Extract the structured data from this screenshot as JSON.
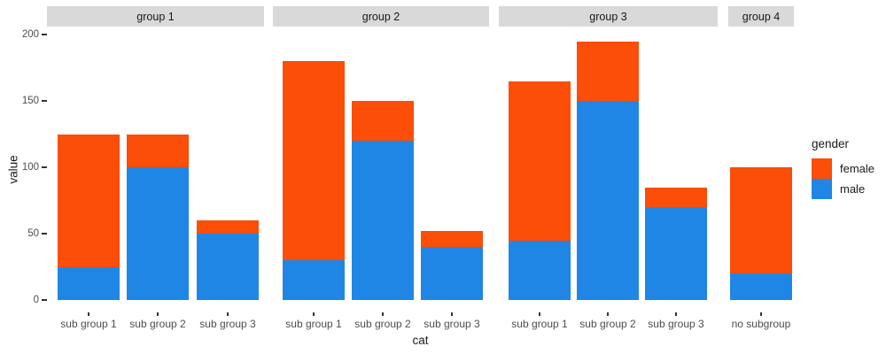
{
  "chart_data": {
    "type": "bar",
    "stacked": true,
    "title": "",
    "xlabel": "cat",
    "ylabel": "value",
    "ylim": [
      0,
      200
    ],
    "yticks": [
      0,
      50,
      100,
      150,
      200
    ],
    "grid": false,
    "legend": {
      "title": "gender",
      "position": "right",
      "entries": [
        {
          "label": "female",
          "color": "#FA4E09"
        },
        {
          "label": "male",
          "color": "#2086E6"
        }
      ]
    },
    "colors": {
      "female": "#FA4E09",
      "male": "#2086E6"
    },
    "strip_bg": "#D9D9D9",
    "axis_text_color": "#4d4d4d",
    "facets": [
      {
        "label": "group 1",
        "categories": [
          "sub group 1",
          "sub group 2",
          "sub group 3"
        ],
        "series": [
          {
            "name": "male",
            "values": [
              25,
              100,
              50
            ]
          },
          {
            "name": "female",
            "values": [
              100,
              25,
              10
            ]
          }
        ]
      },
      {
        "label": "group 2",
        "categories": [
          "sub group 1",
          "sub group 2",
          "sub group 3"
        ],
        "series": [
          {
            "name": "male",
            "values": [
              30,
              120,
              40
            ]
          },
          {
            "name": "female",
            "values": [
              150,
              30,
              12
            ]
          }
        ]
      },
      {
        "label": "group 3",
        "categories": [
          "sub group 1",
          "sub group 2",
          "sub group 3"
        ],
        "series": [
          {
            "name": "male",
            "values": [
              45,
              150,
              70
            ]
          },
          {
            "name": "female",
            "values": [
              120,
              45,
              15
            ]
          }
        ]
      },
      {
        "label": "group 4",
        "categories": [
          "no subgroup"
        ],
        "series": [
          {
            "name": "male",
            "values": [
              20
            ]
          },
          {
            "name": "female",
            "values": [
              80
            ]
          }
        ]
      }
    ]
  }
}
